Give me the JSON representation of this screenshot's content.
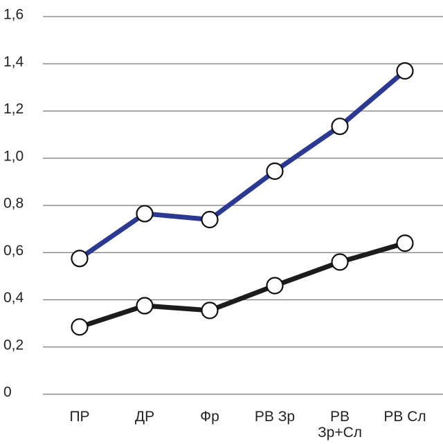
{
  "chart_data": {
    "type": "line",
    "categories": [
      "ПР",
      "ДР",
      "Фр",
      "РВ Зр",
      "РВ Зр+Сл",
      "РВ Сл"
    ],
    "category_label_lines": [
      [
        "ПР"
      ],
      [
        "ДР"
      ],
      [
        "Фр"
      ],
      [
        "РВ Зр"
      ],
      [
        "РВ",
        "Зр+Сл"
      ],
      [
        "РВ Сл"
      ]
    ],
    "series": [
      {
        "color": "#2b3990",
        "values": [
          0.575,
          0.765,
          0.74,
          0.945,
          1.135,
          1.37
        ]
      },
      {
        "color": "#1c1c1c",
        "values": [
          0.285,
          0.375,
          0.355,
          0.46,
          0.56,
          0.64
        ]
      }
    ],
    "yticks": [
      "0",
      "0,2",
      "0,4",
      "0,6",
      "0,8",
      "1,0",
      "1,2",
      "1,4",
      "1,6"
    ],
    "ytick_values": [
      0,
      0.2,
      0.4,
      0.6,
      0.8,
      1.0,
      1.2,
      1.4,
      1.6
    ],
    "ylim": [
      0,
      1.6
    ],
    "title": "",
    "xlabel": "",
    "ylabel": "",
    "grid": true,
    "legend": "none",
    "gridline_color": "#777777",
    "marker_fill": "#ffffff"
  }
}
